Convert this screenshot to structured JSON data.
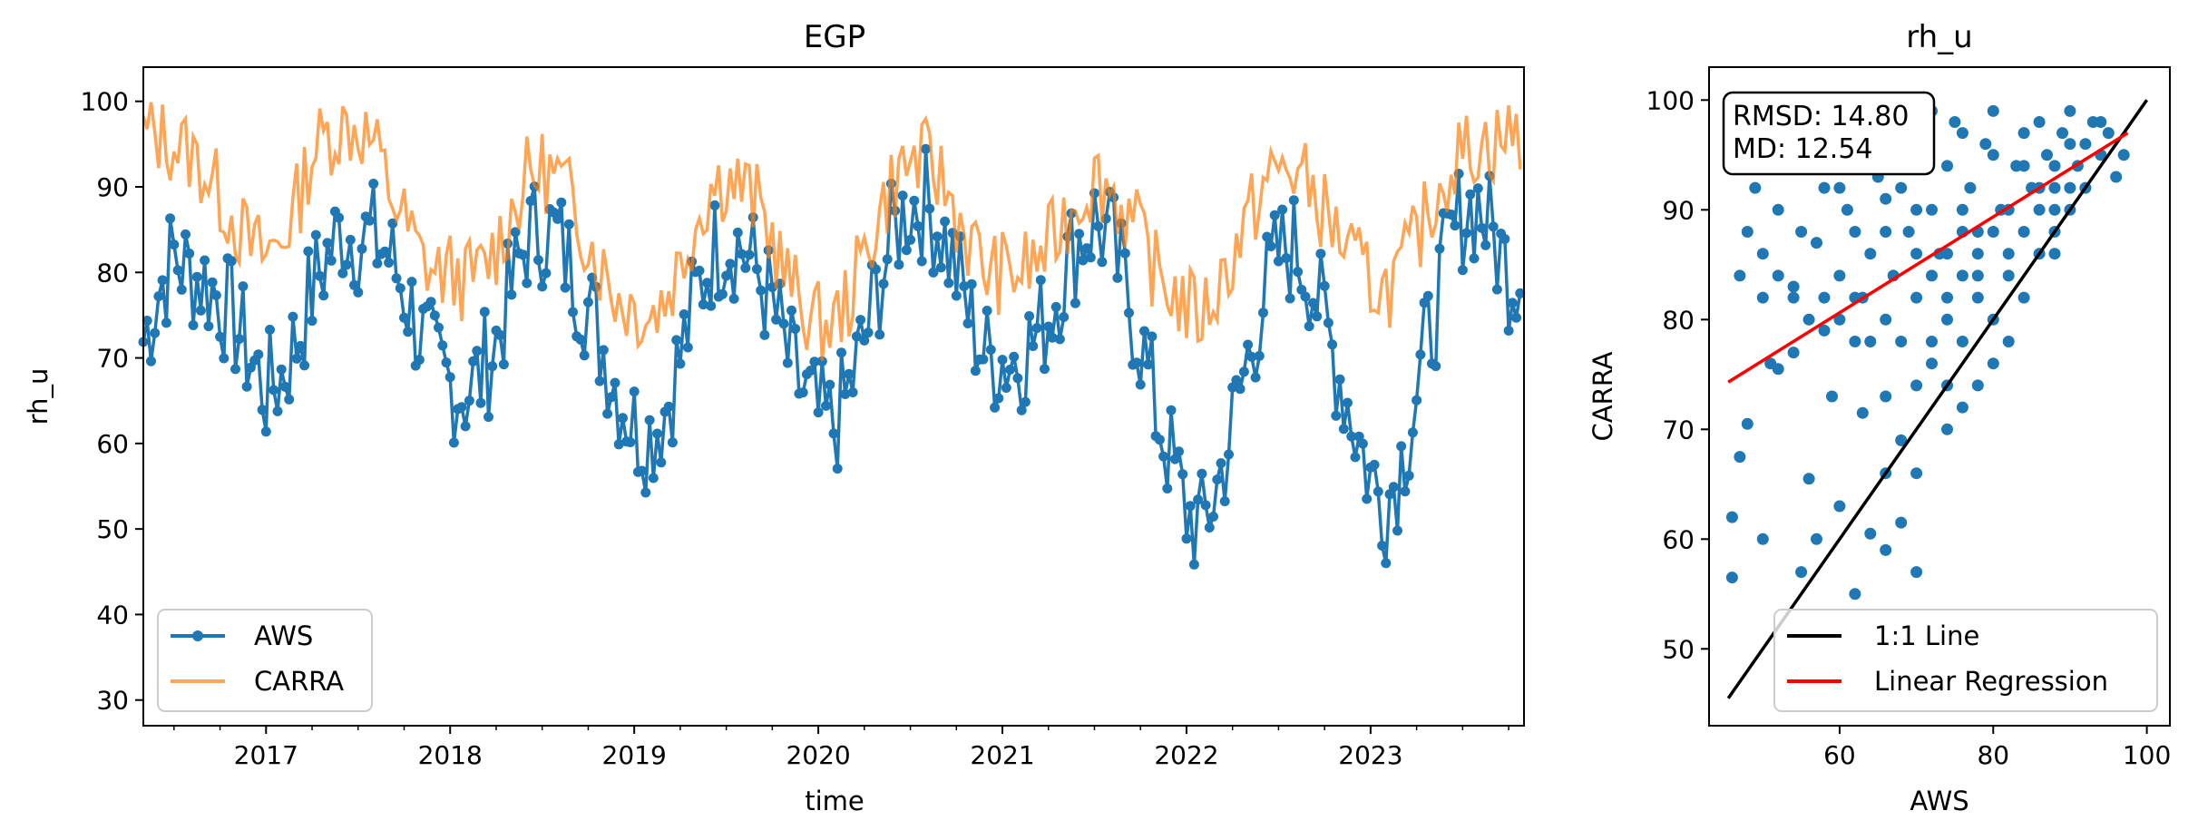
{
  "chart_data": [
    {
      "type": "line",
      "title": "EGP",
      "xlabel": "time",
      "ylabel": "rh_u",
      "xlim": [
        "2016-05-01",
        "2023-11-01"
      ],
      "ylim": [
        27,
        104
      ],
      "x_ticks": [
        "2017",
        "2018",
        "2019",
        "2020",
        "2021",
        "2022",
        "2023"
      ],
      "y_ticks": [
        30,
        40,
        50,
        60,
        70,
        80,
        90,
        100
      ],
      "legend_position": "lower-left",
      "series": [
        {
          "name": "AWS",
          "color": "#1f77b4",
          "marker": "circle",
          "x": [
            "2016-05",
            "2016-06",
            "2016-07",
            "2016-08",
            "2016-09",
            "2016-10",
            "2016-11",
            "2016-12",
            "2017-01",
            "2017-02",
            "2017-03",
            "2017-04",
            "2017-05",
            "2017-06",
            "2017-07",
            "2017-08",
            "2017-09",
            "2017-10",
            "2017-11",
            "2017-12",
            "2018-01",
            "2018-02",
            "2018-03",
            "2018-04",
            "2018-05",
            "2018-06",
            "2018-07",
            "2018-08",
            "2018-09",
            "2018-10",
            "2018-11",
            "2018-12",
            "2019-01",
            "2019-02",
            "2019-03",
            "2019-04",
            "2019-05",
            "2019-06",
            "2019-07",
            "2019-08",
            "2019-09",
            "2019-10",
            "2019-11",
            "2019-12",
            "2020-01",
            "2020-02",
            "2020-03",
            "2020-04",
            "2020-05",
            "2020-06",
            "2020-07",
            "2020-08",
            "2020-09",
            "2020-10",
            "2020-11",
            "2020-12",
            "2021-01",
            "2021-02",
            "2021-03",
            "2021-04",
            "2021-05",
            "2021-06",
            "2021-07",
            "2021-08",
            "2021-09",
            "2021-10",
            "2021-11",
            "2021-12",
            "2022-01",
            "2022-02",
            "2022-03",
            "2022-04",
            "2022-05",
            "2022-06",
            "2022-07",
            "2022-08",
            "2022-09",
            "2022-10",
            "2022-11",
            "2022-12",
            "2023-01",
            "2023-02",
            "2023-03",
            "2023-04",
            "2023-05",
            "2023-06",
            "2023-07",
            "2023-08",
            "2023-09",
            "2023-10"
          ],
          "values": [
            72,
            78,
            82,
            80,
            79,
            77,
            74,
            70,
            66,
            68,
            72,
            78,
            82,
            85,
            84,
            84,
            82,
            78,
            73,
            69,
            67,
            66,
            68,
            72,
            78,
            84,
            85,
            84,
            80,
            76,
            71,
            66,
            62,
            61,
            64,
            70,
            77,
            82,
            84,
            83,
            80,
            76,
            70,
            66,
            63,
            62,
            66,
            72,
            79,
            85,
            88,
            88,
            85,
            80,
            74,
            70,
            70,
            70,
            72,
            75,
            80,
            84,
            86,
            84,
            78,
            72,
            64,
            58,
            52,
            50,
            55,
            62,
            70,
            77,
            82,
            83,
            80,
            74,
            68,
            62,
            56,
            53,
            58,
            66,
            74,
            82,
            87,
            88,
            84,
            80
          ]
        },
        {
          "name": "CARRA",
          "color": "#ff7f0e",
          "alpha": 0.7,
          "x": [
            "2016-05",
            "2016-06",
            "2016-07",
            "2016-08",
            "2016-09",
            "2016-10",
            "2016-11",
            "2016-12",
            "2017-01",
            "2017-02",
            "2017-03",
            "2017-04",
            "2017-05",
            "2017-06",
            "2017-07",
            "2017-08",
            "2017-09",
            "2017-10",
            "2017-11",
            "2017-12",
            "2018-01",
            "2018-02",
            "2018-03",
            "2018-04",
            "2018-05",
            "2018-06",
            "2018-07",
            "2018-08",
            "2018-09",
            "2018-10",
            "2018-11",
            "2018-12",
            "2019-01",
            "2019-02",
            "2019-03",
            "2019-04",
            "2019-05",
            "2019-06",
            "2019-07",
            "2019-08",
            "2019-09",
            "2019-10",
            "2019-11",
            "2019-12",
            "2020-01",
            "2020-02",
            "2020-03",
            "2020-04",
            "2020-05",
            "2020-06",
            "2020-07",
            "2020-08",
            "2020-09",
            "2020-10",
            "2020-11",
            "2020-12",
            "2021-01",
            "2021-02",
            "2021-03",
            "2021-04",
            "2021-05",
            "2021-06",
            "2021-07",
            "2021-08",
            "2021-09",
            "2021-10",
            "2021-11",
            "2021-12",
            "2022-01",
            "2022-02",
            "2022-03",
            "2022-04",
            "2022-05",
            "2022-06",
            "2022-07",
            "2022-08",
            "2022-09",
            "2022-10",
            "2022-11",
            "2022-12",
            "2023-01",
            "2023-02",
            "2023-03",
            "2023-04",
            "2023-05",
            "2023-06",
            "2023-07",
            "2023-08",
            "2023-09",
            "2023-10"
          ],
          "values": [
            96,
            96,
            95,
            94,
            92,
            89,
            86,
            83,
            82,
            84,
            88,
            94,
            96,
            97,
            97,
            95,
            90,
            86,
            82,
            80,
            80,
            79,
            80,
            83,
            87,
            91,
            92,
            91,
            88,
            84,
            80,
            77,
            76,
            75,
            77,
            81,
            86,
            90,
            91,
            90,
            88,
            84,
            79,
            76,
            74,
            74,
            77,
            82,
            87,
            91,
            93,
            93,
            91,
            87,
            83,
            80,
            80,
            80,
            81,
            83,
            86,
            89,
            91,
            90,
            87,
            84,
            80,
            78,
            76,
            75,
            78,
            82,
            86,
            90,
            92,
            92,
            90,
            87,
            84,
            81,
            79,
            78,
            80,
            84,
            88,
            92,
            94,
            95,
            95,
            96
          ]
        }
      ]
    },
    {
      "type": "scatter",
      "title": "rh_u",
      "xlabel": "AWS",
      "ylabel": "CARRA",
      "xlim": [
        43,
        103
      ],
      "ylim": [
        43,
        103
      ],
      "x_ticks": [
        60,
        80,
        100
      ],
      "y_ticks": [
        50,
        60,
        70,
        80,
        90,
        100
      ],
      "legend_position": "lower-right",
      "annotation": [
        "RMSD: 14.80",
        "MD: 12.54"
      ],
      "point_color": "#1f77b4",
      "series": [
        {
          "name": "1:1 Line",
          "color": "#000000",
          "x": [
            45.5,
            100
          ],
          "values": [
            45.5,
            100
          ]
        },
        {
          "name": "Linear Regression",
          "color": "#ff0000",
          "x": [
            45.5,
            97.5
          ],
          "values": [
            74.3,
            97
          ]
        }
      ],
      "points": [
        [
          46,
          56.5
        ],
        [
          46,
          62
        ],
        [
          47,
          67.5
        ],
        [
          48,
          70.5
        ],
        [
          50,
          60
        ],
        [
          51,
          76
        ],
        [
          55,
          57
        ],
        [
          56,
          65.5
        ],
        [
          57,
          60
        ],
        [
          60,
          63
        ],
        [
          62,
          55
        ],
        [
          64,
          60.5
        ],
        [
          66,
          59
        ],
        [
          68,
          61.5
        ],
        [
          70,
          57
        ],
        [
          52,
          75.5
        ],
        [
          54,
          77
        ],
        [
          58,
          79
        ],
        [
          62,
          78
        ],
        [
          66,
          66
        ],
        [
          70,
          66
        ],
        [
          74,
          70
        ],
        [
          66,
          73
        ],
        [
          68,
          69
        ],
        [
          63,
          71.5
        ],
        [
          59,
          73
        ],
        [
          47,
          84
        ],
        [
          48,
          88
        ],
        [
          49,
          92
        ],
        [
          50,
          86
        ],
        [
          52,
          90
        ],
        [
          54,
          83
        ],
        [
          55,
          88
        ],
        [
          57,
          87
        ],
        [
          58,
          92
        ],
        [
          60,
          84
        ],
        [
          61,
          90
        ],
        [
          62,
          88
        ],
        [
          63,
          82
        ],
        [
          64,
          86
        ],
        [
          65,
          93
        ],
        [
          66,
          91
        ],
        [
          67,
          84
        ],
        [
          68,
          95
        ],
        [
          69,
          88
        ],
        [
          70,
          82
        ],
        [
          71,
          96
        ],
        [
          72,
          90
        ],
        [
          73,
          86
        ],
        [
          74,
          94
        ],
        [
          75,
          98
        ],
        [
          76,
          88
        ],
        [
          77,
          92
        ],
        [
          78,
          84
        ],
        [
          79,
          96
        ],
        [
          80,
          99
        ],
        [
          81,
          90
        ],
        [
          82,
          86
        ],
        [
          83,
          94
        ],
        [
          84,
          97
        ],
        [
          85,
          92
        ],
        [
          86,
          98
        ],
        [
          87,
          95
        ],
        [
          88,
          90
        ],
        [
          89,
          97
        ],
        [
          90,
          99
        ],
        [
          91,
          94
        ],
        [
          92,
          96
        ],
        [
          93,
          98
        ],
        [
          94,
          95
        ],
        [
          95,
          97
        ],
        [
          96,
          93
        ],
        [
          97,
          95
        ],
        [
          72,
          78
        ],
        [
          74,
          80
        ],
        [
          76,
          78
        ],
        [
          78,
          82
        ],
        [
          80,
          80
        ],
        [
          82,
          84
        ],
        [
          84,
          82
        ],
        [
          86,
          86
        ],
        [
          88,
          86
        ],
        [
          90,
          90
        ],
        [
          78,
          74
        ],
        [
          76,
          72
        ],
        [
          74,
          74
        ],
        [
          72,
          76
        ],
        [
          70,
          74
        ],
        [
          80,
          76
        ],
        [
          82,
          78
        ],
        [
          84,
          88
        ],
        [
          86,
          90
        ],
        [
          88,
          92
        ],
        [
          70,
          86
        ],
        [
          72,
          84
        ],
        [
          74,
          86
        ],
        [
          76,
          90
        ],
        [
          78,
          88
        ],
        [
          66,
          80
        ],
        [
          68,
          78
        ],
        [
          64,
          78
        ],
        [
          62,
          82
        ],
        [
          60,
          80
        ],
        [
          58,
          82
        ],
        [
          56,
          80
        ],
        [
          54,
          82
        ],
        [
          52,
          84
        ],
        [
          50,
          82
        ],
        [
          60,
          92
        ],
        [
          64,
          96
        ],
        [
          68,
          98
        ],
        [
          72,
          99
        ],
        [
          76,
          97
        ],
        [
          80,
          95
        ],
        [
          84,
          94
        ],
        [
          88,
          94
        ],
        [
          92,
          92
        ],
        [
          82,
          90
        ],
        [
          80,
          88
        ],
        [
          78,
          86
        ],
        [
          76,
          84
        ],
        [
          74,
          82
        ],
        [
          86,
          92
        ],
        [
          90,
          96
        ],
        [
          94,
          98
        ],
        [
          70,
          90
        ],
        [
          68,
          92
        ],
        [
          66,
          88
        ],
        [
          88,
          88
        ],
        [
          90,
          92
        ]
      ]
    }
  ]
}
